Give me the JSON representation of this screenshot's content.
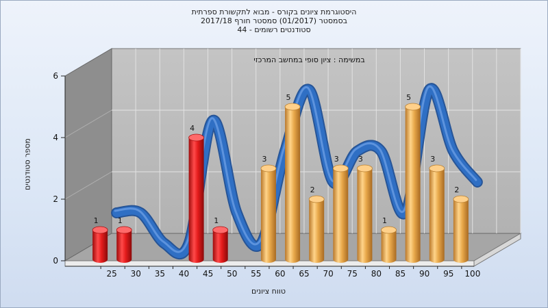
{
  "header": {
    "line1": "היסטוגרמת ציונים בקורס - מבוא לתקשורת ספרתית",
    "line2": "בסמסטר  (01/2017)  סמסטר חורף  2017/18",
    "line3": "סטודנטים רשומים - 44"
  },
  "colors": {
    "red_bar": "#e41c1c",
    "gold_bar": "#e8a84a",
    "ribbon_blue": "#2f6fc4",
    "ribbon_gray": "#6f6f6f",
    "back_wall": "#b8b8b8",
    "left_wall": "#8e8e8e",
    "floor": "#a6a6a6"
  },
  "chart_data": {
    "type": "bar",
    "title": "במשימה : ציון סופי במחשב המרכזי",
    "xlabel": "טווח ציונים",
    "ylabel": "מספר סטודנטים",
    "ylim": [
      0,
      6
    ],
    "yticks": [
      "0",
      "2",
      "4",
      "6"
    ],
    "grid": true,
    "categories": [
      "25",
      "30",
      "35",
      "40",
      "45",
      "50",
      "55",
      "60",
      "65",
      "70",
      "75",
      "80",
      "85",
      "90",
      "95",
      "100"
    ],
    "values": [
      1,
      1,
      0,
      0,
      4,
      1,
      0,
      3,
      5,
      2,
      3,
      3,
      1,
      5,
      3,
      2
    ],
    "bar_colors": [
      "red",
      "red",
      "red",
      "red",
      "red",
      "red",
      "red",
      "gold",
      "gold",
      "gold",
      "gold",
      "gold",
      "gold",
      "gold",
      "gold",
      "gold"
    ]
  }
}
